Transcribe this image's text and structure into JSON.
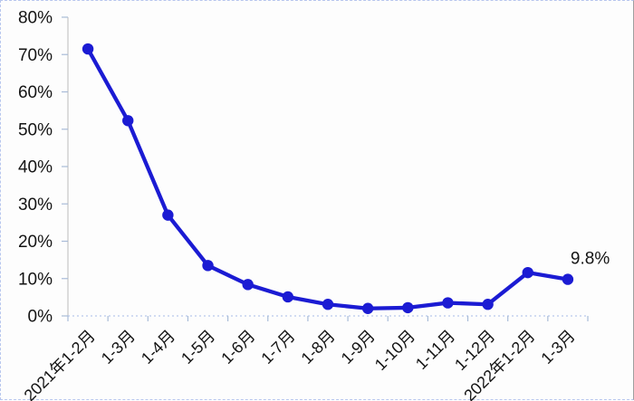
{
  "chart_data": {
    "type": "line",
    "title": "",
    "xlabel": "",
    "ylabel": "",
    "categories": [
      "2021年1-2月",
      "1-3月",
      "1-4月",
      "1-5月",
      "1-6月",
      "1-7月",
      "1-8月",
      "1-9月",
      "1-10月",
      "1-11月",
      "1-12月",
      "2022年1-2月",
      "1-3月"
    ],
    "values": [
      71.5,
      52.3,
      27.0,
      13.5,
      8.4,
      5.1,
      3.1,
      2.0,
      2.2,
      3.5,
      3.1,
      11.6,
      9.8
    ],
    "y_ticks": [
      "0%",
      "10%",
      "20%",
      "30%",
      "40%",
      "50%",
      "60%",
      "70%",
      "80%"
    ],
    "ylim": [
      0,
      80
    ],
    "grid": "off",
    "legend_position": "none",
    "x_label_rotation_deg": -45,
    "point_label": {
      "index": 12,
      "text": "9.8%"
    },
    "colors": {
      "line": "#1b1bd3",
      "marker": "#1b1bd3",
      "axis_line": "#c6c6c6",
      "tick": "#a9bcd8",
      "baseline_dotted": "#b9c9ec",
      "text": "#141414",
      "frame_dashed": "#b7c6ee",
      "frame_right_solid": "#9e9e9e",
      "background": "#fdfdfd"
    }
  }
}
